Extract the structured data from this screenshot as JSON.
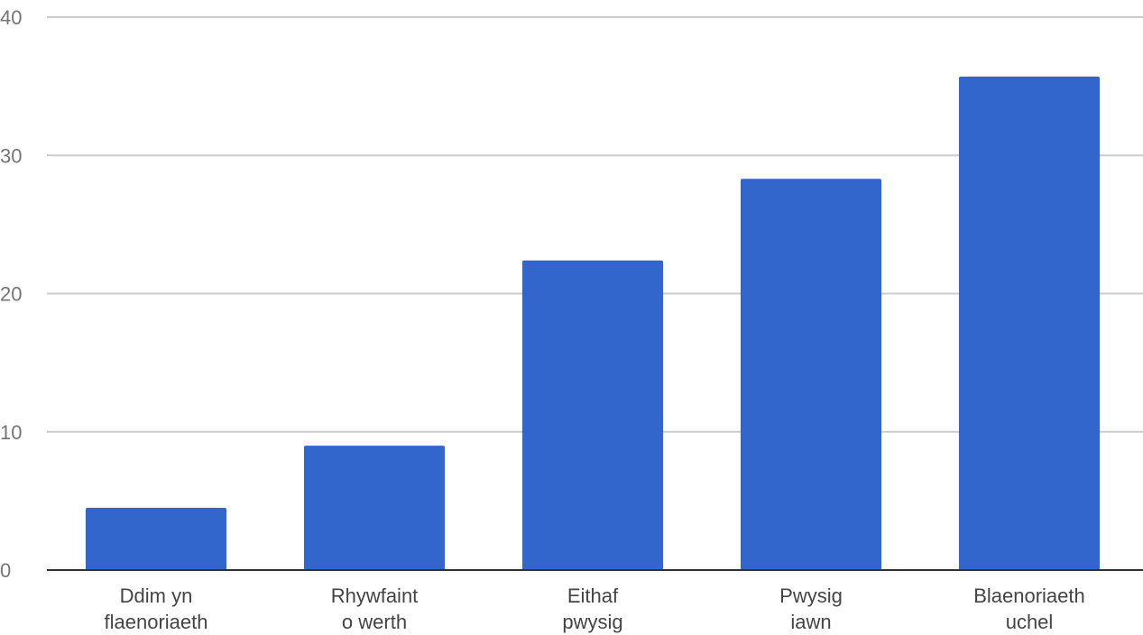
{
  "chart_data": {
    "type": "bar",
    "title": "",
    "xlabel": "",
    "ylabel": "",
    "ylim": [
      0,
      40
    ],
    "yticks": [
      0,
      10,
      20,
      30,
      40
    ],
    "grid": true,
    "categories": [
      [
        "Ddim yn",
        "flaenoriaeth"
      ],
      [
        "Rhywfaint",
        "o werth"
      ],
      [
        "Eithaf",
        "pwysig"
      ],
      [
        "Pwysig",
        "iawn"
      ],
      [
        "Blaenoriaeth",
        "uchel"
      ]
    ],
    "values": [
      4.5,
      9,
      22.4,
      28.3,
      35.7
    ],
    "colors": {
      "bar": "#3366cc",
      "grid": "#cccccc",
      "axis": "#333333"
    }
  }
}
